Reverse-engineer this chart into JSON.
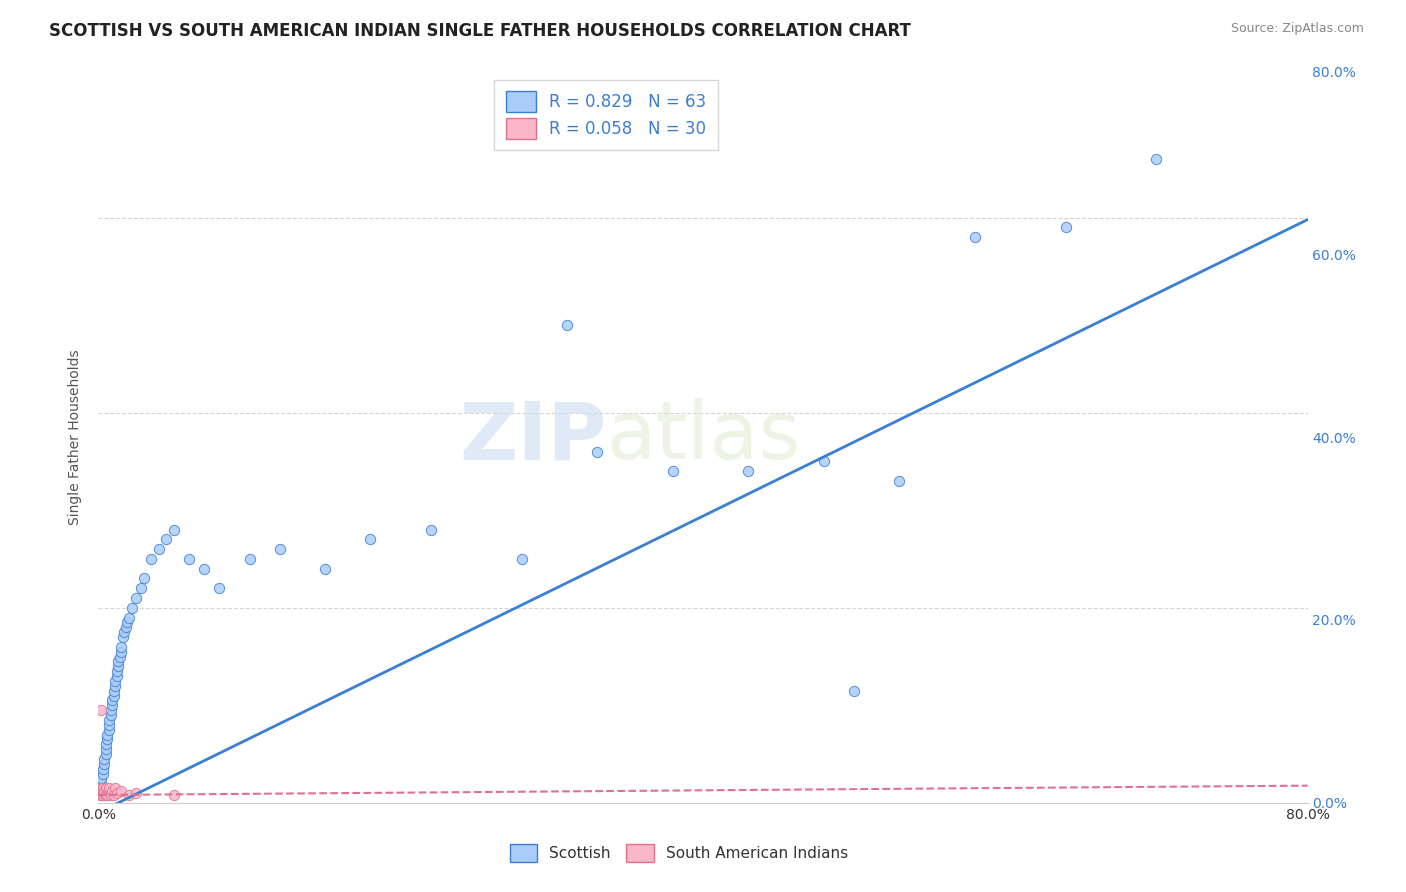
{
  "title": "SCOTTISH VS SOUTH AMERICAN INDIAN SINGLE FATHER HOUSEHOLDS CORRELATION CHART",
  "source": "Source: ZipAtlas.com",
  "ylabel": "Single Father Households",
  "watermark_zip": "ZIP",
  "watermark_atlas": "atlas",
  "legend_r1": "R = 0.829",
  "legend_n1": "N = 63",
  "legend_r2": "R = 0.058",
  "legend_n2": "N = 30",
  "scottish_color": "#aaccf8",
  "scottish_line_color": "#3a7fd5",
  "sa_indian_color": "#f8b8c8",
  "sa_indian_line_color": "#e07090",
  "background_color": "#ffffff",
  "grid_color": "#cccccc",
  "scottish_x": [
    0.001,
    0.001,
    0.002,
    0.002,
    0.003,
    0.003,
    0.004,
    0.004,
    0.005,
    0.005,
    0.005,
    0.006,
    0.006,
    0.007,
    0.007,
    0.007,
    0.008,
    0.008,
    0.009,
    0.009,
    0.01,
    0.01,
    0.011,
    0.011,
    0.012,
    0.012,
    0.013,
    0.013,
    0.014,
    0.015,
    0.015,
    0.016,
    0.017,
    0.018,
    0.019,
    0.02,
    0.022,
    0.025,
    0.028,
    0.03,
    0.035,
    0.04,
    0.045,
    0.05,
    0.06,
    0.07,
    0.08,
    0.1,
    0.12,
    0.15,
    0.18,
    0.22,
    0.28,
    0.33,
    0.38,
    0.43,
    0.48,
    0.53,
    0.58,
    0.64,
    0.7,
    0.5,
    0.31
  ],
  "scottish_y": [
    0.01,
    0.015,
    0.02,
    0.025,
    0.03,
    0.035,
    0.04,
    0.045,
    0.05,
    0.055,
    0.06,
    0.065,
    0.07,
    0.075,
    0.08,
    0.085,
    0.09,
    0.095,
    0.1,
    0.105,
    0.11,
    0.115,
    0.12,
    0.125,
    0.13,
    0.135,
    0.14,
    0.145,
    0.15,
    0.155,
    0.16,
    0.17,
    0.175,
    0.18,
    0.185,
    0.19,
    0.2,
    0.21,
    0.22,
    0.23,
    0.25,
    0.26,
    0.27,
    0.28,
    0.25,
    0.24,
    0.22,
    0.25,
    0.26,
    0.24,
    0.27,
    0.28,
    0.25,
    0.36,
    0.34,
    0.34,
    0.35,
    0.33,
    0.58,
    0.59,
    0.66,
    0.115,
    0.49
  ],
  "sa_indian_x": [
    0.0,
    0.0,
    0.001,
    0.001,
    0.001,
    0.002,
    0.002,
    0.002,
    0.002,
    0.003,
    0.003,
    0.003,
    0.004,
    0.004,
    0.005,
    0.005,
    0.006,
    0.006,
    0.007,
    0.007,
    0.008,
    0.008,
    0.009,
    0.01,
    0.011,
    0.012,
    0.015,
    0.02,
    0.025,
    0.05
  ],
  "sa_indian_y": [
    0.01,
    0.015,
    0.01,
    0.008,
    0.012,
    0.01,
    0.015,
    0.008,
    0.012,
    0.01,
    0.008,
    0.015,
    0.01,
    0.012,
    0.008,
    0.015,
    0.01,
    0.008,
    0.012,
    0.015,
    0.01,
    0.008,
    0.012,
    0.008,
    0.015,
    0.01,
    0.012,
    0.008,
    0.01,
    0.008
  ],
  "sa_indian_outlier_x": [
    0.002
  ],
  "sa_indian_outlier_y": [
    0.095
  ],
  "xmin": 0.0,
  "xmax": 0.8,
  "ymin": 0.0,
  "ymax": 0.75,
  "right_yticks": [
    0.0,
    0.2,
    0.4,
    0.6,
    0.8
  ],
  "right_ytick_labels": [
    "0.0%",
    "20.0%",
    "40.0%",
    "60.0%",
    "80.0%"
  ],
  "xticks": [
    0.0,
    0.1,
    0.2,
    0.3,
    0.4,
    0.5,
    0.6,
    0.7,
    0.8
  ],
  "xtick_labels": [
    "0.0%",
    "",
    "",
    "",
    "",
    "",
    "",
    "",
    "80.0%"
  ]
}
